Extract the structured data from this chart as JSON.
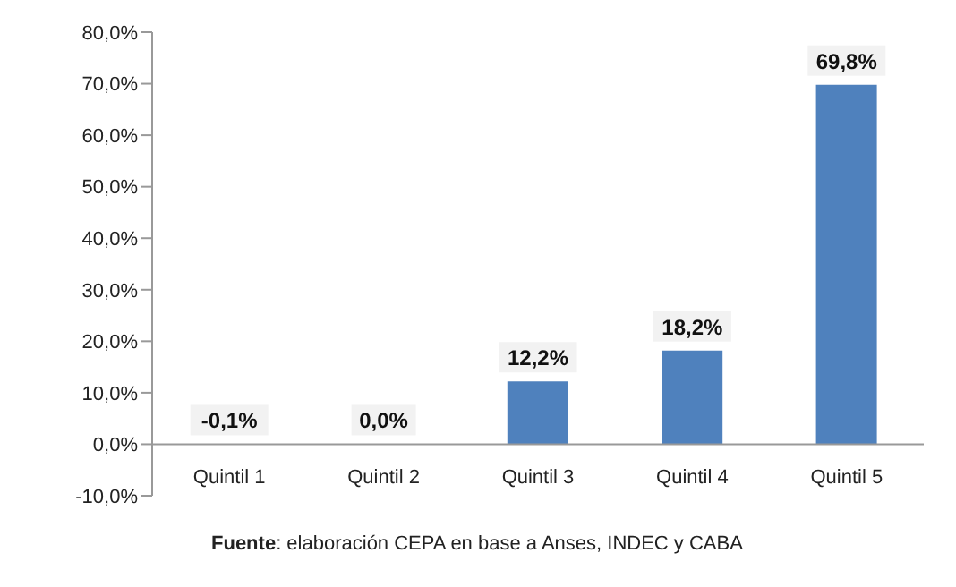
{
  "chart_data": {
    "type": "bar",
    "categories": [
      "Quintil 1",
      "Quintil 2",
      "Quintil 3",
      "Quintil 4",
      "Quintil 5"
    ],
    "values": [
      -0.1,
      0.0,
      12.2,
      18.2,
      69.8
    ],
    "color": "#4f81bd",
    "value_labels": [
      "-0,1%",
      "0,0%",
      "12,2%",
      "18,2%",
      "69,8%"
    ],
    "ylim": [
      -10,
      80
    ],
    "yticks": [
      {
        "value": -10,
        "label": "-10,0%"
      },
      {
        "value": 0,
        "label": "0,0%"
      },
      {
        "value": 10,
        "label": "10,0%"
      },
      {
        "value": 20,
        "label": "20,0%"
      },
      {
        "value": 30,
        "label": "30,0%"
      },
      {
        "value": 40,
        "label": "40,0%"
      },
      {
        "value": 50,
        "label": "50,0%"
      },
      {
        "value": 60,
        "label": "60,0%"
      },
      {
        "value": 70,
        "label": "70,0%"
      },
      {
        "value": 80,
        "label": "80,0%"
      }
    ],
    "grid": false,
    "annotations": [
      "Fuente: elaboración CEPA en base a Anses, INDEC y CABA"
    ]
  }
}
